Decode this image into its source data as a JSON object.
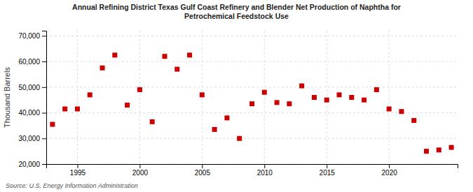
{
  "chart_data": {
    "type": "scatter",
    "title": [
      "Annual Refining District Texas Gulf Coast Refinery and Blender Net Production of Naphtha for",
      "Petrochemical Feedstock Use"
    ],
    "y_label": "Thousand Barrels",
    "annotations": [
      "Source: U.S. Energy Information Administration"
    ],
    "color": "#cc0000",
    "marker": "square",
    "grid": true,
    "xlim": [
      1992.5,
      2025.5
    ],
    "ylim": [
      20000,
      72000
    ],
    "xticks": [
      1995,
      2000,
      2005,
      2010,
      2015,
      2020
    ],
    "yticks": [
      {
        "value": 20000,
        "label": "20,000"
      },
      {
        "value": 30000,
        "label": "30,000"
      },
      {
        "value": 40000,
        "label": "40,000"
      },
      {
        "value": 50000,
        "label": "50,000"
      },
      {
        "value": 60000,
        "label": "60,000"
      },
      {
        "value": 70000,
        "label": "70,000"
      }
    ],
    "x": [
      1993,
      1994,
      1995,
      1996,
      1997,
      1998,
      1999,
      2000,
      2001,
      2002,
      2003,
      2004,
      2005,
      2006,
      2007,
      2008,
      2009,
      2010,
      2011,
      2012,
      2013,
      2014,
      2015,
      2016,
      2017,
      2018,
      2019,
      2020,
      2021,
      2022,
      2023,
      2024,
      2025
    ],
    "values": [
      35500,
      41500,
      41500,
      47000,
      57500,
      62500,
      43000,
      49000,
      36500,
      62000,
      57000,
      62500,
      47000,
      33500,
      38000,
      30000,
      43500,
      48000,
      44000,
      43500,
      50500,
      46000,
      45000,
      47000,
      46000,
      45000,
      49000,
      41500,
      40500,
      37000,
      25000,
      25500,
      26500
    ]
  }
}
